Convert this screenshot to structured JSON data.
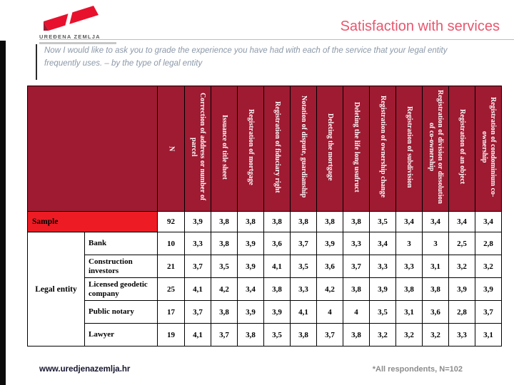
{
  "logo": {
    "brand": "UREĐENA ZEMLJA"
  },
  "header": {
    "title": "Satisfaction with services"
  },
  "subtitle": "Now I would like to ask you to grade the experience you have had with each of the service that your legal entity frequently uses. – by the type of legal entity",
  "table": {
    "columns": [
      "N",
      "Correction of address or number of parcel",
      "Issuance of title sheet",
      "Registration of mortgage",
      "Registration of fiduciary right",
      "Notation of dispute, guardianship",
      "Deleting the mortgage",
      "Deleting the life long usufruct",
      "Registration of ownership change",
      "Registration of subdivision",
      "Registration of division or dissolution of co-ownership",
      "Registration of an object",
      "Registration of condominium co-ownership"
    ],
    "sample_row": {
      "label": "Sample",
      "values": [
        "92",
        "3,9",
        "3,8",
        "3,8",
        "3,8",
        "3,8",
        "3,8",
        "3,8",
        "3,5",
        "3,4",
        "3,4",
        "3,4",
        "3,4"
      ]
    },
    "group_label": "Legal entity",
    "rows": [
      {
        "label": "Bank",
        "values": [
          "10",
          "3,3",
          "3,8",
          "3,9",
          "3,6",
          "3,7",
          "3,9",
          "3,3",
          "3,4",
          "3",
          "3",
          "2,5",
          "2,8"
        ]
      },
      {
        "label": "Construction investors",
        "values": [
          "21",
          "3,7",
          "3,5",
          "3,9",
          "4,1",
          "3,5",
          "3,6",
          "3,7",
          "3,3",
          "3,3",
          "3,1",
          "3,2",
          "3,2"
        ]
      },
      {
        "label": "Licensed geodetic company",
        "values": [
          "25",
          "4,1",
          "4,2",
          "3,4",
          "3,8",
          "3,3",
          "4,2",
          "3,8",
          "3,9",
          "3,8",
          "3,8",
          "3,9",
          "3,9"
        ]
      },
      {
        "label": "Public notary",
        "values": [
          "17",
          "3,7",
          "3,8",
          "3,9",
          "3,9",
          "4,1",
          "4",
          "4",
          "3,5",
          "3,1",
          "3,6",
          "2,8",
          "3,7"
        ]
      },
      {
        "label": "Lawyer",
        "values": [
          "19",
          "4,1",
          "3,7",
          "3,8",
          "3,5",
          "3,8",
          "3,7",
          "3,8",
          "3,2",
          "3,2",
          "3,2",
          "3,3",
          "3,1"
        ]
      }
    ]
  },
  "footer": {
    "website": "www.uredjenazemlja.hr",
    "note": "*All respondents, N=102"
  },
  "colors": {
    "header_bg": "#9e1b32",
    "sample_bg": "#ed1c24",
    "title": "#e8566e",
    "brand_red": "#e8112d",
    "note_gray": "#8c8c8c"
  }
}
